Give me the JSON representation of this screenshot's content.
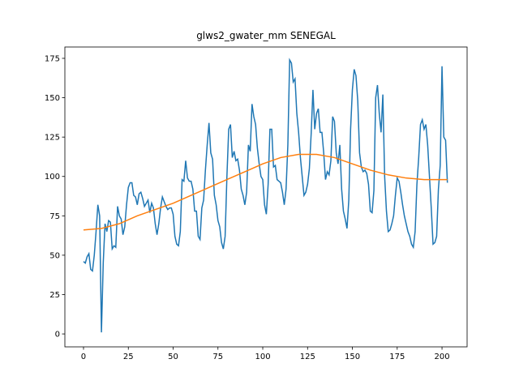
{
  "chart_data": {
    "type": "line",
    "title": "glws2_gwater_mm SENEGAL",
    "series": [
      {
        "color": "#1f77b4",
        "x": [
          0,
          1,
          2,
          3,
          4,
          5,
          6,
          7,
          8,
          9,
          10,
          11,
          12,
          13,
          14,
          15,
          16,
          17,
          18,
          19,
          20,
          21,
          22,
          23,
          24,
          25,
          26,
          27,
          28,
          29,
          30,
          31,
          32,
          33,
          34,
          35,
          36,
          37,
          38,
          39,
          40,
          41,
          42,
          43,
          44,
          45,
          46,
          47,
          48,
          49,
          50,
          51,
          52,
          53,
          54,
          55,
          56,
          57,
          58,
          59,
          60,
          61,
          62,
          63,
          64,
          65,
          66,
          67,
          68,
          69,
          70,
          71,
          72,
          73,
          74,
          75,
          76,
          77,
          78,
          79,
          80,
          81,
          82,
          83,
          84,
          85,
          86,
          87,
          88,
          89,
          90,
          91,
          92,
          93,
          94,
          95,
          96,
          97,
          98,
          99,
          100,
          101,
          102,
          103,
          104,
          105,
          106,
          107,
          108,
          109,
          110,
          111,
          112,
          113,
          114,
          115,
          116,
          117,
          118,
          119,
          120,
          121,
          122,
          123,
          124,
          125,
          126,
          127,
          128,
          129,
          130,
          131,
          132,
          133,
          134,
          135,
          136,
          137,
          138,
          139,
          140,
          141,
          142,
          143,
          144,
          145,
          146,
          147,
          148,
          149,
          150,
          151,
          152,
          153,
          154,
          155,
          156,
          157,
          158,
          159,
          160,
          161,
          162,
          163,
          164,
          165,
          166,
          167,
          168,
          169,
          170,
          171,
          172,
          173,
          174,
          175,
          176,
          177,
          178,
          179,
          180,
          181,
          182,
          183,
          184,
          185,
          186,
          187,
          188,
          189,
          190,
          191,
          192,
          193,
          194,
          195,
          196,
          197,
          198,
          199,
          200,
          201,
          202,
          203
        ],
        "values": [
          46,
          45,
          49,
          51,
          41,
          40,
          50,
          65,
          82,
          75,
          1,
          45,
          70,
          65,
          72,
          71,
          54,
          56,
          55,
          81,
          75,
          73,
          63,
          68,
          82,
          93,
          96,
          96,
          88,
          87,
          82,
          89,
          90,
          86,
          81,
          83,
          85,
          77,
          83,
          80,
          70,
          63,
          70,
          80,
          87,
          84,
          81,
          79,
          80,
          80,
          76,
          62,
          57,
          56,
          65,
          98,
          97,
          110,
          99,
          97,
          97,
          92,
          78,
          78,
          62,
          60,
          80,
          85,
          104,
          120,
          134,
          115,
          111,
          88,
          82,
          72,
          68,
          58,
          54,
          62,
          100,
          130,
          133,
          112,
          116,
          110,
          111,
          104,
          92,
          88,
          82,
          90,
          120,
          116,
          146,
          138,
          133,
          118,
          108,
          100,
          98,
          82,
          76,
          95,
          130,
          130,
          106,
          107,
          98,
          97,
          96,
          90,
          82,
          92,
          120,
          174,
          172,
          160,
          162,
          140,
          128,
          112,
          100,
          88,
          90,
          95,
          105,
          127,
          155,
          130,
          140,
          143,
          128,
          128,
          115,
          98,
          103,
          101,
          110,
          138,
          135,
          115,
          108,
          120,
          92,
          78,
          73,
          67,
          85,
          130,
          155,
          168,
          164,
          148,
          115,
          106,
          103,
          104,
          102,
          95,
          78,
          77,
          91,
          150,
          158,
          140,
          128,
          152,
          100,
          78,
          65,
          66,
          70,
          75,
          88,
          99,
          97,
          90,
          82,
          75,
          70,
          65,
          62,
          57,
          55,
          65,
          95,
          112,
          133,
          136,
          130,
          133,
          120,
          100,
          80,
          57,
          58,
          62,
          92,
          107,
          170,
          125,
          123,
          96
        ]
      },
      {
        "color": "#ff7f0e",
        "x": [
          0,
          10,
          20,
          30,
          40,
          50,
          60,
          70,
          80,
          90,
          100,
          110,
          120,
          130,
          140,
          150,
          160,
          170,
          180,
          190,
          200,
          203
        ],
        "values": [
          66,
          67,
          70,
          75,
          79,
          83,
          88,
          93,
          98,
          103,
          108,
          112,
          114,
          114,
          112,
          108,
          104,
          101,
          99,
          98,
          98,
          98
        ]
      }
    ],
    "xlim": [
      -10.4,
      214
    ],
    "ylim": [
      -8.2,
      182.2
    ],
    "xticks": [
      0,
      25,
      50,
      75,
      100,
      125,
      150,
      175,
      200
    ],
    "yticks": [
      0,
      25,
      50,
      75,
      100,
      125,
      150,
      175
    ]
  }
}
